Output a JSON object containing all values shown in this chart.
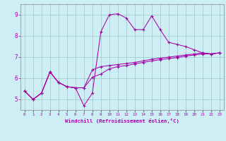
{
  "xlabel": "Windchill (Refroidissement éolien,°C)",
  "background_color": "#cdeef5",
  "grid_color": "#9dcfcf",
  "line_color": "#aa00aa",
  "xlim": [
    -0.5,
    23.5
  ],
  "ylim": [
    4.5,
    9.5
  ],
  "xticks": [
    0,
    1,
    2,
    3,
    4,
    5,
    6,
    7,
    8,
    9,
    10,
    11,
    12,
    13,
    14,
    15,
    16,
    17,
    18,
    19,
    20,
    21,
    22,
    23
  ],
  "yticks": [
    5,
    6,
    7,
    8,
    9
  ],
  "line1_x": [
    0,
    1,
    2,
    3,
    4,
    5,
    6,
    7,
    8,
    9,
    10,
    11,
    12,
    13,
    14,
    15,
    16,
    17,
    18,
    19,
    20,
    21,
    22,
    23
  ],
  "line1_y": [
    5.4,
    5.0,
    5.3,
    6.3,
    5.8,
    5.6,
    5.55,
    4.7,
    5.3,
    8.2,
    9.0,
    9.05,
    8.85,
    8.3,
    8.3,
    8.95,
    8.3,
    7.7,
    7.6,
    7.5,
    7.35,
    7.2,
    7.15,
    7.2
  ],
  "line2_x": [
    0,
    1,
    2,
    3,
    4,
    5,
    6,
    7,
    8,
    9,
    10,
    11,
    12,
    13,
    14,
    15,
    16,
    17,
    18,
    19,
    20,
    21,
    22,
    23
  ],
  "line2_y": [
    5.4,
    5.0,
    5.3,
    6.3,
    5.8,
    5.6,
    5.55,
    5.55,
    6.4,
    6.55,
    6.6,
    6.65,
    6.7,
    6.75,
    6.82,
    6.9,
    6.95,
    7.0,
    7.05,
    7.1,
    7.15,
    7.2,
    7.15,
    7.2
  ],
  "line3_x": [
    0,
    1,
    2,
    3,
    4,
    5,
    6,
    7,
    8,
    9,
    10,
    11,
    12,
    13,
    14,
    15,
    16,
    17,
    18,
    19,
    20,
    21,
    22,
    23
  ],
  "line3_y": [
    5.4,
    5.0,
    5.3,
    6.3,
    5.8,
    5.6,
    5.55,
    5.55,
    6.05,
    6.2,
    6.45,
    6.55,
    6.6,
    6.68,
    6.75,
    6.82,
    6.88,
    6.93,
    6.98,
    7.05,
    7.1,
    7.15,
    7.15,
    7.2
  ]
}
